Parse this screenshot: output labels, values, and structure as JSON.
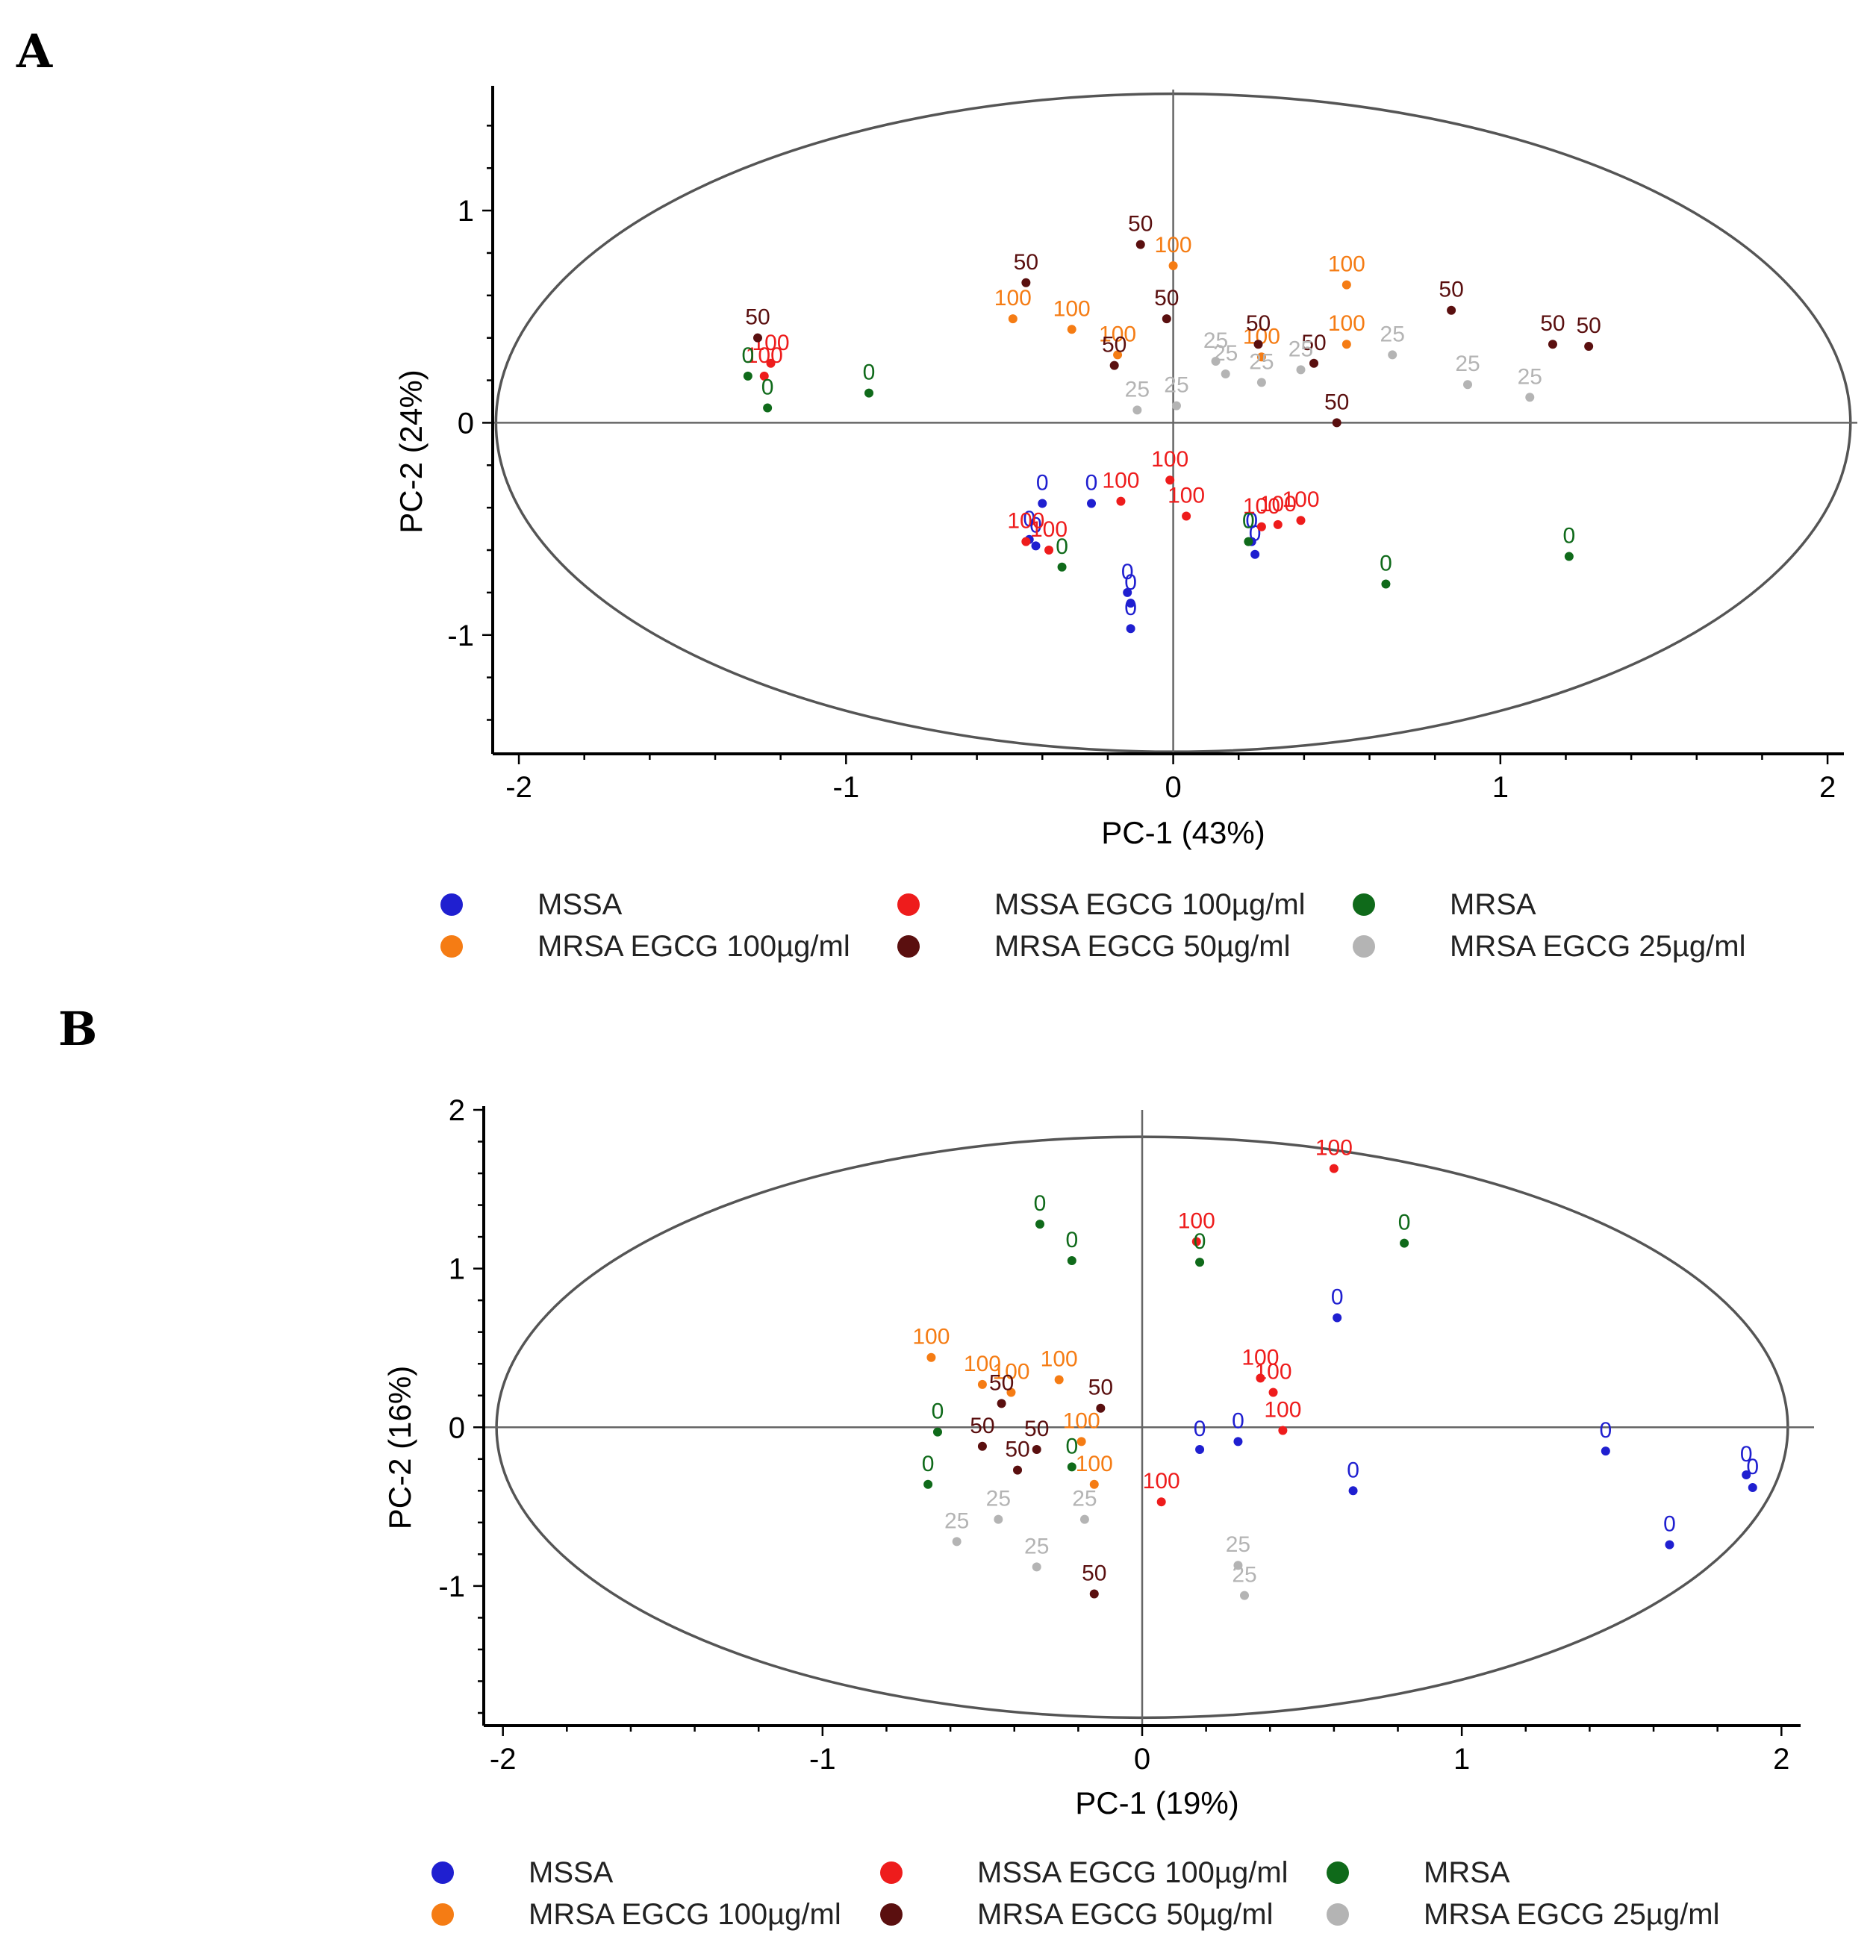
{
  "figure": {
    "colors": {
      "MSSA": "#1f1fd0",
      "MSSA EGCG 100µg/ml": "#ee1c1c",
      "MRSA": "#0f6a1a",
      "MRSA EGCG 100µg/ml": "#f57c14",
      "MRSA EGCG 50µg/ml": "#5a0f0f",
      "MRSA EGCG 25µg/ml": "#b4b4b4"
    },
    "legend": [
      "MSSA",
      "MSSA EGCG 100µg/ml",
      "MRSA",
      "MRSA EGCG 100µg/ml",
      "MRSA EGCG 50µg/ml",
      "MRSA EGCG 25µg/ml"
    ]
  },
  "chart_data": [
    {
      "panel": "A",
      "type": "scatter",
      "xlabel": "PC-1 (43%)",
      "ylabel": "PC-2 (24%)",
      "xlim": [
        -2.08,
        2.05
      ],
      "ylim": [
        -1.56,
        1.57
      ],
      "xticks": [
        "-2",
        "-1",
        "0",
        "1",
        "2"
      ],
      "xtick_values": [
        -2,
        -1,
        0,
        1,
        2
      ],
      "yticks": [
        "-1",
        "0",
        "1"
      ],
      "ytick_values": [
        -1,
        0,
        1
      ],
      "ellipse": {
        "cx": 0,
        "cy": 0,
        "rx": 2.07,
        "ry": 1.55
      },
      "series": [
        {
          "name": "MSSA",
          "label": "0",
          "points": [
            [
              -0.44,
              -0.55
            ],
            [
              -0.42,
              -0.58
            ],
            [
              -0.4,
              -0.38
            ],
            [
              -0.25,
              -0.38
            ],
            [
              -0.14,
              -0.8
            ],
            [
              -0.13,
              -0.85
            ],
            [
              -0.13,
              -0.97
            ],
            [
              0.24,
              -0.56
            ],
            [
              0.25,
              -0.62
            ]
          ]
        },
        {
          "name": "MSSA EGCG 100µg/ml",
          "label": "100",
          "points": [
            [
              -1.25,
              0.22
            ],
            [
              -1.23,
              0.28
            ],
            [
              -0.45,
              -0.56
            ],
            [
              -0.38,
              -0.6
            ],
            [
              -0.16,
              -0.37
            ],
            [
              -0.01,
              -0.27
            ],
            [
              0.04,
              -0.44
            ],
            [
              0.27,
              -0.49
            ],
            [
              0.32,
              -0.48
            ],
            [
              0.39,
              -0.46
            ]
          ]
        },
        {
          "name": "MRSA",
          "label": "0",
          "points": [
            [
              -1.3,
              0.22
            ],
            [
              -1.24,
              0.07
            ],
            [
              -0.93,
              0.14
            ],
            [
              -0.34,
              -0.68
            ],
            [
              0.23,
              -0.56
            ],
            [
              0.65,
              -0.76
            ],
            [
              1.21,
              -0.63
            ]
          ]
        },
        {
          "name": "MRSA EGCG 100µg/ml",
          "label": "100",
          "points": [
            [
              -0.49,
              0.49
            ],
            [
              -0.31,
              0.44
            ],
            [
              -0.17,
              0.32
            ],
            [
              0.0,
              0.74
            ],
            [
              0.27,
              0.31
            ],
            [
              0.53,
              0.65
            ],
            [
              0.53,
              0.37
            ]
          ]
        },
        {
          "name": "MRSA EGCG 50µg/ml",
          "label": "50",
          "points": [
            [
              -1.27,
              0.4
            ],
            [
              -0.45,
              0.66
            ],
            [
              -0.18,
              0.27
            ],
            [
              -0.1,
              0.84
            ],
            [
              -0.02,
              0.49
            ],
            [
              0.26,
              0.37
            ],
            [
              0.43,
              0.28
            ],
            [
              0.5,
              0.0
            ],
            [
              0.85,
              0.53
            ],
            [
              1.16,
              0.37
            ],
            [
              1.27,
              0.36
            ]
          ]
        },
        {
          "name": "MRSA EGCG 25µg/ml",
          "label": "25",
          "points": [
            [
              -0.11,
              0.06
            ],
            [
              0.01,
              0.08
            ],
            [
              0.13,
              0.29
            ],
            [
              0.16,
              0.23
            ],
            [
              0.27,
              0.19
            ],
            [
              0.39,
              0.25
            ],
            [
              0.67,
              0.32
            ],
            [
              0.9,
              0.18
            ],
            [
              1.09,
              0.12
            ]
          ]
        }
      ]
    },
    {
      "panel": "B",
      "type": "scatter",
      "xlabel": "PC-1 (19%)",
      "ylabel": "PC-2 (16%)",
      "xlim": [
        -2.06,
        2.06
      ],
      "ylim": [
        -1.88,
        2.0
      ],
      "xticks": [
        "-2",
        "-1",
        "0",
        "1",
        "2"
      ],
      "xtick_values": [
        -2,
        -1,
        0,
        1,
        2
      ],
      "yticks": [
        "-1",
        "0",
        "1",
        "2"
      ],
      "ytick_values": [
        -1,
        0,
        1,
        2
      ],
      "ellipse": {
        "cx": 0,
        "cy": 0,
        "rx": 2.02,
        "ry": 1.83
      },
      "series": [
        {
          "name": "MSSA",
          "label": "0",
          "points": [
            [
              0.18,
              -0.14
            ],
            [
              0.3,
              -0.09
            ],
            [
              0.61,
              0.69
            ],
            [
              0.66,
              -0.4
            ],
            [
              1.45,
              -0.15
            ],
            [
              1.65,
              -0.74
            ],
            [
              1.89,
              -0.3
            ],
            [
              1.91,
              -0.38
            ]
          ]
        },
        {
          "name": "MSSA EGCG 100µg/ml",
          "label": "100",
          "points": [
            [
              0.06,
              -0.47
            ],
            [
              0.17,
              1.17
            ],
            [
              0.37,
              0.31
            ],
            [
              0.41,
              0.22
            ],
            [
              0.44,
              -0.02
            ],
            [
              0.6,
              1.63
            ]
          ]
        },
        {
          "name": "MRSA",
          "label": "0",
          "points": [
            [
              -0.67,
              -0.36
            ],
            [
              -0.64,
              -0.03
            ],
            [
              -0.32,
              1.28
            ],
            [
              -0.22,
              1.05
            ],
            [
              -0.22,
              -0.25
            ],
            [
              0.18,
              1.04
            ],
            [
              0.82,
              1.16
            ]
          ]
        },
        {
          "name": "MRSA EGCG 100µg/ml",
          "label": "100",
          "points": [
            [
              -0.66,
              0.44
            ],
            [
              -0.5,
              0.27
            ],
            [
              -0.41,
              0.22
            ],
            [
              -0.26,
              0.3
            ],
            [
              -0.19,
              -0.09
            ],
            [
              -0.15,
              -0.36
            ]
          ]
        },
        {
          "name": "MRSA EGCG 50µg/ml",
          "label": "50",
          "points": [
            [
              -0.5,
              -0.12
            ],
            [
              -0.44,
              0.15
            ],
            [
              -0.39,
              -0.27
            ],
            [
              -0.33,
              -0.14
            ],
            [
              -0.13,
              0.12
            ],
            [
              -0.15,
              -1.05
            ]
          ]
        },
        {
          "name": "MRSA EGCG 25µg/ml",
          "label": "25",
          "points": [
            [
              -0.58,
              -0.72
            ],
            [
              -0.45,
              -0.58
            ],
            [
              -0.33,
              -0.88
            ],
            [
              -0.18,
              -0.58
            ],
            [
              0.3,
              -0.87
            ],
            [
              0.32,
              -1.06
            ]
          ]
        }
      ]
    }
  ]
}
